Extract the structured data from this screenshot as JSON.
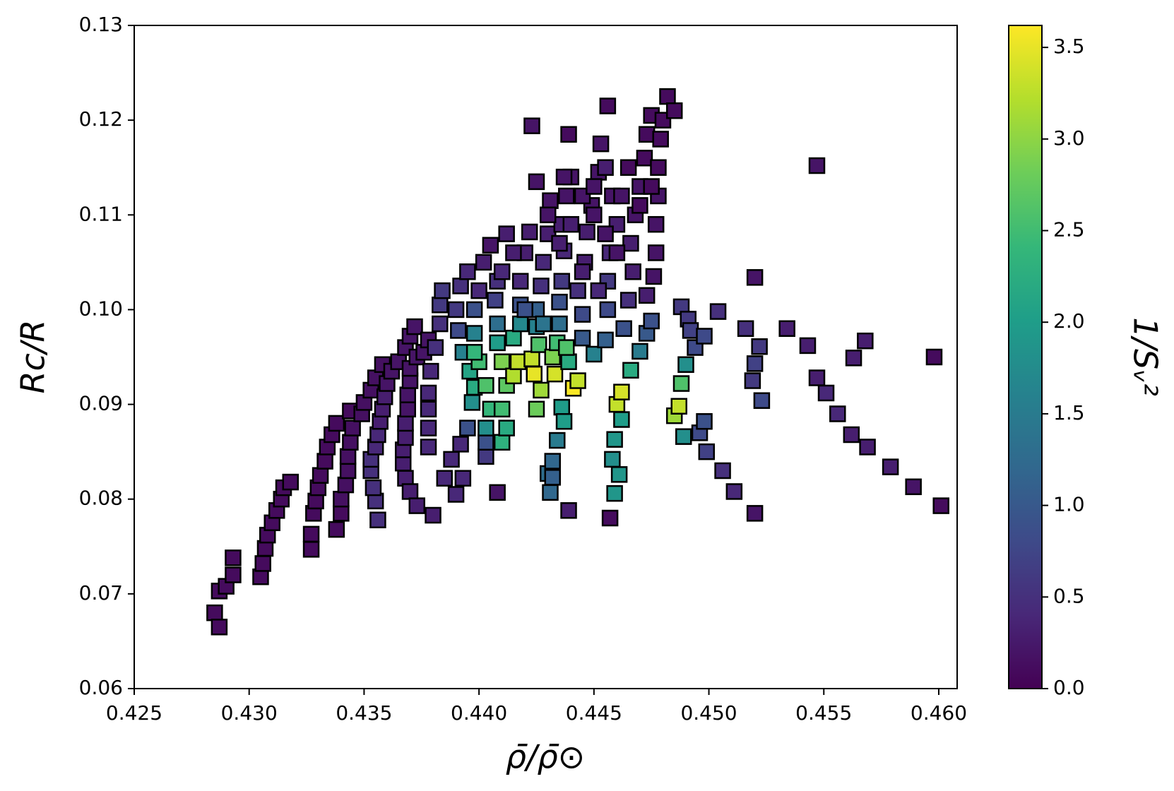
{
  "chart_data": {
    "type": "scatter",
    "x_label": "ρ̄/ρ̄⊙",
    "y_label": "Rc/R",
    "colorbar_label": "1/Sᵥ²",
    "colormap": "viridis",
    "marker": "square",
    "edge_color": "#000000",
    "xlim": [
      0.425,
      0.4608
    ],
    "ylim": [
      0.06,
      0.13
    ],
    "clim": [
      0,
      3.62
    ],
    "xticks": [
      0.425,
      {
        "value": 0.43,
        "label": "0.430"
      },
      0.435,
      {
        "value": 0.44,
        "label": "0.440"
      },
      0.445,
      {
        "value": 0.45,
        "label": "0.450"
      },
      0.455,
      {
        "value": 0.46,
        "label": "0.460"
      }
    ],
    "yticks": [
      0.06,
      0.07,
      0.08,
      0.09,
      {
        "value": 0.1,
        "label": "0.10"
      },
      0.11,
      0.12,
      0.13
    ],
    "cticks": [
      {
        "value": 0,
        "label": "0.0"
      },
      {
        "value": 0.5,
        "label": "0.5"
      },
      {
        "value": 1,
        "label": "1.0"
      },
      {
        "value": 1.5,
        "label": "1.5"
      },
      {
        "value": 2,
        "label": "2.0"
      },
      {
        "value": 2.5,
        "label": "2.5"
      },
      {
        "value": 3,
        "label": "3.0"
      },
      {
        "value": 3.5,
        "label": "3.5"
      }
    ],
    "points": [
      [
        0.4285,
        0.068,
        0.1
      ],
      [
        0.4287,
        0.0665,
        0.1
      ],
      [
        0.4287,
        0.0703,
        0.1
      ],
      [
        0.429,
        0.0708,
        0.1
      ],
      [
        0.4293,
        0.0738,
        0.1
      ],
      [
        0.4293,
        0.072,
        0.1
      ],
      [
        0.4305,
        0.0718,
        0.1
      ],
      [
        0.4306,
        0.0732,
        0.1
      ],
      [
        0.4307,
        0.0748,
        0.1
      ],
      [
        0.4308,
        0.0762,
        0.1
      ],
      [
        0.431,
        0.0775,
        0.1
      ],
      [
        0.4312,
        0.0788,
        0.1
      ],
      [
        0.4314,
        0.08,
        0.1
      ],
      [
        0.4315,
        0.0812,
        0.1
      ],
      [
        0.4318,
        0.0818,
        0.1
      ],
      [
        0.4327,
        0.0747,
        0.1
      ],
      [
        0.4327,
        0.0763,
        0.1
      ],
      [
        0.4328,
        0.0785,
        0.1
      ],
      [
        0.4329,
        0.0798,
        0.1
      ],
      [
        0.433,
        0.0812,
        0.1
      ],
      [
        0.4331,
        0.0825,
        0.1
      ],
      [
        0.4333,
        0.084,
        0.1
      ],
      [
        0.4334,
        0.0855,
        0.1
      ],
      [
        0.4336,
        0.0868,
        0.1
      ],
      [
        0.4338,
        0.088,
        0.1
      ],
      [
        0.4344,
        0.0893,
        0.1
      ],
      [
        0.4338,
        0.0768,
        0.1
      ],
      [
        0.434,
        0.0785,
        0.1
      ],
      [
        0.434,
        0.08,
        0.15
      ],
      [
        0.4342,
        0.0815,
        0.15
      ],
      [
        0.4343,
        0.083,
        0.15
      ],
      [
        0.4343,
        0.0845,
        0.15
      ],
      [
        0.4344,
        0.086,
        0.15
      ],
      [
        0.4345,
        0.0875,
        0.15
      ],
      [
        0.4349,
        0.089,
        0.15
      ],
      [
        0.435,
        0.0902,
        0.15
      ],
      [
        0.4353,
        0.0915,
        0.15
      ],
      [
        0.4355,
        0.0928,
        0.15
      ],
      [
        0.4358,
        0.0942,
        0.15
      ],
      [
        0.4356,
        0.0778,
        0.5
      ],
      [
        0.4355,
        0.0798,
        0.5
      ],
      [
        0.4354,
        0.0812,
        0.5
      ],
      [
        0.4353,
        0.083,
        0.5
      ],
      [
        0.4353,
        0.0842,
        0.5
      ],
      [
        0.4355,
        0.0855,
        0.4
      ],
      [
        0.4356,
        0.0868,
        0.4
      ],
      [
        0.4357,
        0.0882,
        0.3
      ],
      [
        0.4358,
        0.0895,
        0.3
      ],
      [
        0.4359,
        0.0908,
        0.3
      ],
      [
        0.436,
        0.0922,
        0.2
      ],
      [
        0.4362,
        0.0935,
        0.2
      ],
      [
        0.4365,
        0.0945,
        0.2
      ],
      [
        0.4368,
        0.096,
        0.2
      ],
      [
        0.437,
        0.0972,
        0.2
      ],
      [
        0.4372,
        0.0982,
        0.2
      ],
      [
        0.4368,
        0.0822,
        0.3
      ],
      [
        0.4367,
        0.0838,
        0.3
      ],
      [
        0.4367,
        0.0852,
        0.3
      ],
      [
        0.4368,
        0.0865,
        0.3
      ],
      [
        0.4368,
        0.088,
        0.3
      ],
      [
        0.4369,
        0.0895,
        0.2
      ],
      [
        0.4369,
        0.091,
        0.2
      ],
      [
        0.437,
        0.0925,
        0.2
      ],
      [
        0.437,
        0.0938,
        0.2
      ],
      [
        0.4373,
        0.095,
        0.2
      ],
      [
        0.4376,
        0.0955,
        0.2
      ],
      [
        0.4378,
        0.0968,
        0.2
      ],
      [
        0.437,
        0.0808,
        0.3
      ],
      [
        0.4373,
        0.0793,
        0.3
      ],
      [
        0.438,
        0.0783,
        0.3
      ],
      [
        0.4378,
        0.0855,
        0.4
      ],
      [
        0.4378,
        0.0875,
        0.4
      ],
      [
        0.4378,
        0.0895,
        0.4
      ],
      [
        0.4378,
        0.0912,
        0.4
      ],
      [
        0.4379,
        0.0935,
        0.4
      ],
      [
        0.4381,
        0.096,
        0.5
      ],
      [
        0.4383,
        0.0985,
        0.5
      ],
      [
        0.4383,
        0.1005,
        0.6
      ],
      [
        0.4384,
        0.102,
        0.6
      ],
      [
        0.4385,
        0.0822,
        0.4
      ],
      [
        0.4388,
        0.0842,
        0.4
      ],
      [
        0.439,
        0.0805,
        0.4
      ],
      [
        0.4393,
        0.0822,
        0.4
      ],
      [
        0.4392,
        0.0858,
        0.4
      ],
      [
        0.4395,
        0.0875,
        0.9
      ],
      [
        0.4397,
        0.0902,
        1.8
      ],
      [
        0.4398,
        0.0918,
        2.2
      ],
      [
        0.4396,
        0.0935,
        2.1
      ],
      [
        0.4393,
        0.0955,
        1.6
      ],
      [
        0.4391,
        0.0978,
        0.8
      ],
      [
        0.439,
        0.1,
        0.6
      ],
      [
        0.4392,
        0.1025,
        0.5
      ],
      [
        0.4395,
        0.104,
        0.4
      ],
      [
        0.4408,
        0.0807,
        0.2
      ],
      [
        0.4403,
        0.0845,
        0.6
      ],
      [
        0.4403,
        0.086,
        0.9
      ],
      [
        0.4403,
        0.0875,
        1.8
      ],
      [
        0.4405,
        0.0895,
        2.4
      ],
      [
        0.4403,
        0.092,
        2.6
      ],
      [
        0.44,
        0.0945,
        2.5
      ],
      [
        0.4398,
        0.0955,
        2.4
      ],
      [
        0.4398,
        0.0975,
        1.6
      ],
      [
        0.4398,
        0.1,
        0.9
      ],
      [
        0.44,
        0.102,
        0.4
      ],
      [
        0.4402,
        0.105,
        0.3
      ],
      [
        0.4405,
        0.1068,
        0.2
      ],
      [
        0.441,
        0.086,
        2.3
      ],
      [
        0.4412,
        0.0875,
        2.2
      ],
      [
        0.441,
        0.0895,
        2.5
      ],
      [
        0.4412,
        0.092,
        2.7
      ],
      [
        0.441,
        0.0945,
        2.9
      ],
      [
        0.4408,
        0.0965,
        2.0
      ],
      [
        0.4408,
        0.0985,
        1.3
      ],
      [
        0.4407,
        0.101,
        0.7
      ],
      [
        0.4408,
        0.103,
        0.5
      ],
      [
        0.4415,
        0.093,
        3.2
      ],
      [
        0.4417,
        0.0945,
        3.3
      ],
      [
        0.4415,
        0.097,
        2.2
      ],
      [
        0.4418,
        0.0985,
        1.7
      ],
      [
        0.4418,
        0.1005,
        0.9
      ],
      [
        0.4418,
        0.103,
        0.4
      ],
      [
        0.442,
        0.106,
        0.3
      ],
      [
        0.4422,
        0.1082,
        0.3
      ],
      [
        0.4425,
        0.0895,
        2.8
      ],
      [
        0.4427,
        0.0915,
        3.1
      ],
      [
        0.4424,
        0.0932,
        3.5
      ],
      [
        0.4423,
        0.0948,
        3.3
      ],
      [
        0.4426,
        0.0963,
        2.6
      ],
      [
        0.4425,
        0.0982,
        1.6
      ],
      [
        0.4425,
        0.1,
        1.1
      ],
      [
        0.4427,
        0.1025,
        0.5
      ],
      [
        0.4428,
        0.105,
        0.4
      ],
      [
        0.443,
        0.108,
        0.3
      ],
      [
        0.4431,
        0.1115,
        0.2
      ],
      [
        0.443,
        0.0827,
        1.3
      ],
      [
        0.4432,
        0.084,
        1.2
      ],
      [
        0.4431,
        0.0807,
        1.2
      ],
      [
        0.4432,
        0.0823,
        1.1
      ],
      [
        0.4434,
        0.0862,
        1.5
      ],
      [
        0.4433,
        0.0932,
        3.4
      ],
      [
        0.4432,
        0.095,
        2.9
      ],
      [
        0.4434,
        0.0965,
        2.5
      ],
      [
        0.4435,
        0.0985,
        1.3
      ],
      [
        0.4435,
        0.1008,
        0.9
      ],
      [
        0.4436,
        0.103,
        0.6
      ],
      [
        0.4437,
        0.1062,
        0.4
      ],
      [
        0.4436,
        0.109,
        0.3
      ],
      [
        0.4438,
        0.112,
        0.2
      ],
      [
        0.4436,
        0.0897,
        2.0
      ],
      [
        0.4437,
        0.0882,
        2.0
      ],
      [
        0.4439,
        0.0945,
        2.2
      ],
      [
        0.4438,
        0.096,
        2.6
      ],
      [
        0.4441,
        0.0917,
        3.6
      ],
      [
        0.4439,
        0.0788,
        0.3
      ],
      [
        0.4443,
        0.0925,
        3.3
      ],
      [
        0.4445,
        0.097,
        1.0
      ],
      [
        0.4445,
        0.0995,
        0.8
      ],
      [
        0.4443,
        0.102,
        0.5
      ],
      [
        0.4446,
        0.105,
        0.3
      ],
      [
        0.4447,
        0.1082,
        0.3
      ],
      [
        0.4449,
        0.111,
        0.2
      ],
      [
        0.4452,
        0.1145,
        0.2
      ],
      [
        0.445,
        0.0953,
        1.6
      ],
      [
        0.4455,
        0.0968,
        1.1
      ],
      [
        0.4456,
        0.1,
        0.8
      ],
      [
        0.4456,
        0.103,
        0.6
      ],
      [
        0.4457,
        0.106,
        0.4
      ],
      [
        0.446,
        0.109,
        0.3
      ],
      [
        0.4458,
        0.112,
        0.2
      ],
      [
        0.4455,
        0.115,
        0.3
      ],
      [
        0.4453,
        0.1175,
        0.2
      ],
      [
        0.4457,
        0.078,
        0.1
      ],
      [
        0.4459,
        0.0806,
        1.9
      ],
      [
        0.4458,
        0.0842,
        1.8
      ],
      [
        0.4459,
        0.0863,
        1.9
      ],
      [
        0.446,
        0.09,
        3.3
      ],
      [
        0.4462,
        0.0913,
        3.4
      ],
      [
        0.4462,
        0.0884,
        2.0
      ],
      [
        0.4461,
        0.0826,
        1.9
      ],
      [
        0.4466,
        0.0936,
        2.2
      ],
      [
        0.4463,
        0.098,
        0.9
      ],
      [
        0.4465,
        0.101,
        0.5
      ],
      [
        0.4467,
        0.104,
        0.3
      ],
      [
        0.4466,
        0.107,
        0.3
      ],
      [
        0.4468,
        0.11,
        0.2
      ],
      [
        0.447,
        0.113,
        0.2
      ],
      [
        0.4472,
        0.116,
        0.1
      ],
      [
        0.4473,
        0.1185,
        0.1
      ],
      [
        0.4475,
        0.1205,
        0.1
      ],
      [
        0.447,
        0.0956,
        1.5
      ],
      [
        0.4473,
        0.0975,
        1.0
      ],
      [
        0.4475,
        0.0988,
        0.9
      ],
      [
        0.4473,
        0.1015,
        0.3
      ],
      [
        0.4476,
        0.1035,
        0.2
      ],
      [
        0.4477,
        0.106,
        0.2
      ],
      [
        0.4477,
        0.109,
        0.2
      ],
      [
        0.4478,
        0.112,
        0.2
      ],
      [
        0.4478,
        0.115,
        0.1
      ],
      [
        0.4479,
        0.118,
        0.1
      ],
      [
        0.448,
        0.12,
        0.1
      ],
      [
        0.4482,
        0.1225,
        0.1
      ],
      [
        0.4485,
        0.121,
        0.1
      ],
      [
        0.4485,
        0.0888,
        3.1
      ],
      [
        0.4487,
        0.0898,
        3.3
      ],
      [
        0.4488,
        0.0922,
        2.6
      ],
      [
        0.4489,
        0.0866,
        1.8
      ],
      [
        0.449,
        0.0942,
        1.8
      ],
      [
        0.4488,
        0.1003,
        0.6
      ],
      [
        0.4491,
        0.099,
        0.6
      ],
      [
        0.4492,
        0.0978,
        0.7
      ],
      [
        0.4494,
        0.096,
        0.8
      ],
      [
        0.4496,
        0.087,
        0.8
      ],
      [
        0.4498,
        0.0882,
        0.9
      ],
      [
        0.4498,
        0.0972,
        0.8
      ],
      [
        0.4499,
        0.085,
        0.7
      ],
      [
        0.4506,
        0.083,
        0.5
      ],
      [
        0.4511,
        0.0808,
        0.4
      ],
      [
        0.452,
        0.0785,
        0.2
      ],
      [
        0.4504,
        0.0998,
        0.5
      ],
      [
        0.4516,
        0.098,
        0.5
      ],
      [
        0.4522,
        0.0961,
        0.6
      ],
      [
        0.452,
        0.0943,
        0.7
      ],
      [
        0.4519,
        0.0925,
        0.6
      ],
      [
        0.4523,
        0.0904,
        0.8
      ],
      [
        0.452,
        0.1034,
        0.2
      ],
      [
        0.4534,
        0.098,
        0.3
      ],
      [
        0.4543,
        0.0962,
        0.3
      ],
      [
        0.4547,
        0.0928,
        0.3
      ],
      [
        0.4551,
        0.0912,
        0.4
      ],
      [
        0.4556,
        0.089,
        0.4
      ],
      [
        0.4562,
        0.0868,
        0.3
      ],
      [
        0.4569,
        0.0855,
        0.3
      ],
      [
        0.4579,
        0.0834,
        0.3
      ],
      [
        0.4589,
        0.0813,
        0.2
      ],
      [
        0.4601,
        0.0793,
        0.1
      ],
      [
        0.4598,
        0.095,
        0.1
      ],
      [
        0.4563,
        0.0949,
        0.3
      ],
      [
        0.4568,
        0.0967,
        0.3
      ],
      [
        0.4547,
        0.1152,
        0.2
      ],
      [
        0.4423,
        0.1194,
        0.2
      ],
      [
        0.4439,
        0.1185,
        0.1
      ],
      [
        0.4456,
        0.1215,
        0.1
      ],
      [
        0.4425,
        0.1135,
        0.2
      ],
      [
        0.443,
        0.11,
        0.2
      ],
      [
        0.444,
        0.114,
        0.2
      ],
      [
        0.4445,
        0.112,
        0.2
      ],
      [
        0.445,
        0.11,
        0.2
      ],
      [
        0.4455,
        0.108,
        0.2
      ],
      [
        0.446,
        0.106,
        0.2
      ],
      [
        0.4465,
        0.115,
        0.1
      ],
      [
        0.447,
        0.111,
        0.1
      ],
      [
        0.4475,
        0.113,
        0.1
      ],
      [
        0.4415,
        0.106,
        0.3
      ],
      [
        0.441,
        0.104,
        0.4
      ],
      [
        0.442,
        0.1,
        0.9
      ],
      [
        0.4428,
        0.0985,
        1.4
      ],
      [
        0.4412,
        0.108,
        0.3
      ],
      [
        0.4435,
        0.107,
        0.3
      ],
      [
        0.4445,
        0.104,
        0.3
      ],
      [
        0.4452,
        0.102,
        0.4
      ],
      [
        0.444,
        0.109,
        0.3
      ],
      [
        0.4462,
        0.112,
        0.2
      ],
      [
        0.4437,
        0.114,
        0.2
      ],
      [
        0.445,
        0.113,
        0.2
      ]
    ]
  }
}
